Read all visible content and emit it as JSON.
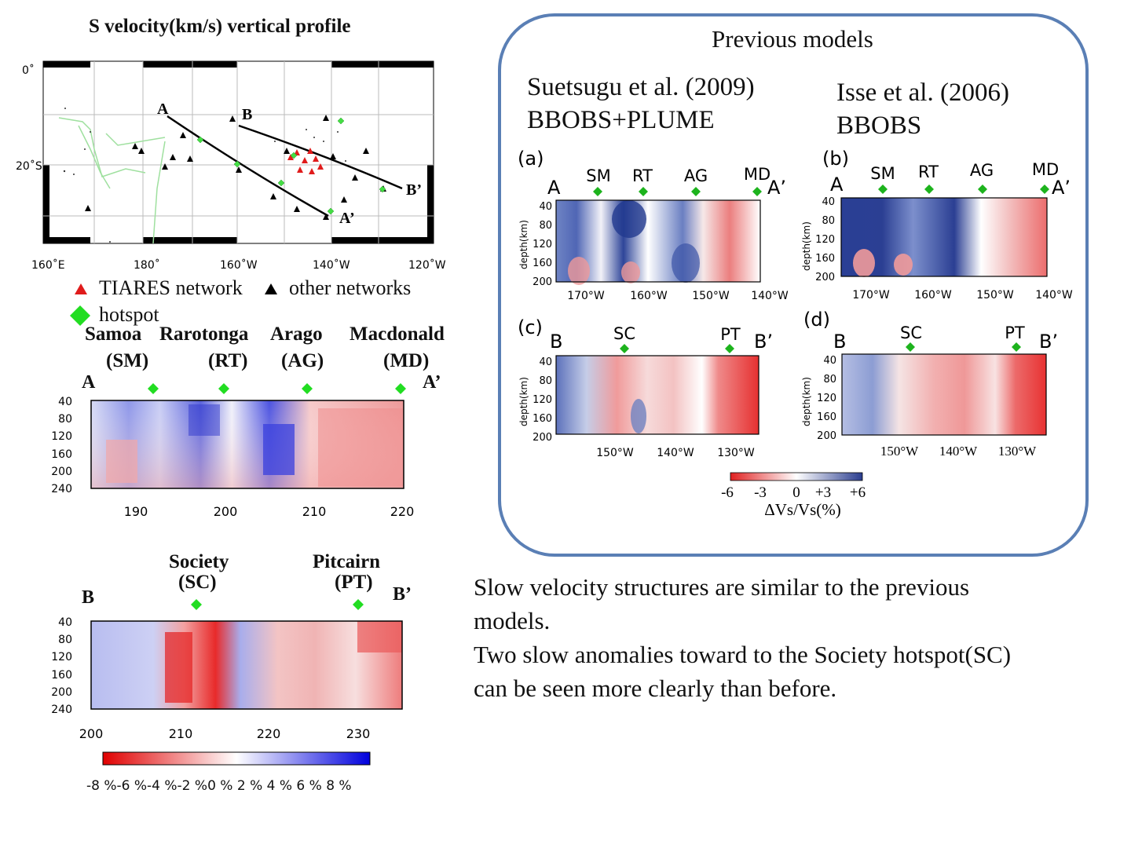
{
  "title": "S velocity(km/s) vertical profile",
  "map": {
    "lat_labels": [
      "0˚",
      "20˚S"
    ],
    "lon_labels": [
      "160˚E",
      "180˚",
      "160˚W",
      "140˚W",
      "120˚W"
    ],
    "profile_labels": {
      "A": "A",
      "A_prime": "A’",
      "B": "B",
      "B_prime": "B’"
    },
    "legend": {
      "tiares": "TIARES network",
      "other": "other networks",
      "hotspot": "hotspot"
    }
  },
  "profile_A": {
    "hotspots": [
      {
        "name": "Samoa",
        "abbr": "(SM)",
        "x": 192
      },
      {
        "name": "Rarotonga",
        "abbr": "(RT)",
        "x": 200
      },
      {
        "name": "Arago",
        "abbr": "(AG)",
        "x": 209
      },
      {
        "name": "Macdonald",
        "abbr": "(MD)",
        "x": 220
      }
    ],
    "end_left": "A",
    "end_right": "A’",
    "y_ticks": [
      "40",
      "80",
      "120",
      "160",
      "200",
      "240"
    ],
    "x_ticks": [
      "190",
      "200",
      "210",
      "220"
    ]
  },
  "profile_B": {
    "hotspots": [
      {
        "name": "Society",
        "abbr": "(SC)",
        "x": 212
      },
      {
        "name": "Pitcairn",
        "abbr": "(PT)",
        "x": 230
      }
    ],
    "end_left": "B",
    "end_right": "B’",
    "y_ticks": [
      "40",
      "80",
      "120",
      "160",
      "200",
      "240"
    ],
    "x_ticks": [
      "200",
      "210",
      "220",
      "230"
    ]
  },
  "colorbar_main": {
    "labels": [
      "-8 %",
      "-6 %",
      "-4 %",
      "-2 %",
      "0 %",
      "2 %",
      "4 %",
      "6 %",
      "8 %"
    ],
    "colors": [
      "#e00000",
      "#ffffff",
      "#0000dd"
    ]
  },
  "previous": {
    "heading": "Previous models",
    "left_ref": "Suetsugu et al. (2009)",
    "left_sub": "BBOBS+PLUME",
    "right_ref": "Isse et al. (2006)",
    "right_sub": "BBOBS",
    "panels": [
      {
        "tag": "(a)",
        "ends": [
          "A",
          "A’"
        ],
        "hotspots": [
          "SM",
          "RT",
          "AG",
          "MD"
        ],
        "x_ticks": [
          "170°W",
          "160°W",
          "150°W",
          "140°W"
        ],
        "y_ticks": [
          "40",
          "80",
          "120",
          "160",
          "200"
        ]
      },
      {
        "tag": "(b)",
        "ends": [
          "A",
          "A’"
        ],
        "hotspots": [
          "SM",
          "RT",
          "AG",
          "MD"
        ],
        "x_ticks": [
          "170°W",
          "160°W",
          "150°W",
          "140°W"
        ],
        "y_ticks": [
          "40",
          "80",
          "120",
          "160",
          "200"
        ]
      },
      {
        "tag": "(c)",
        "ends": [
          "B",
          "B’"
        ],
        "hotspots": [
          "SC",
          "PT"
        ],
        "x_ticks": [
          "150°W",
          "140°W",
          "130°W"
        ],
        "y_ticks": [
          "40",
          "80",
          "120",
          "160",
          "200"
        ]
      },
      {
        "tag": "(d)",
        "ends": [
          "B",
          "B’"
        ],
        "hotspots": [
          "SC",
          "PT"
        ],
        "x_ticks": [
          "150°W",
          "140°W",
          "130°W"
        ],
        "y_ticks": [
          "40",
          "80",
          "120",
          "160",
          "200"
        ]
      }
    ],
    "y_axis_label": "depth(km)",
    "colorbar_labels": [
      "-6",
      "-3",
      "0",
      "+3",
      "+6"
    ],
    "colorbar_title": "ΔVs/Vs(%)"
  },
  "conclusion": {
    "line1": "Slow velocity structures are similar to the previous",
    "line2": "models.",
    "line3": "Two slow anomalies toward to the Society hotspot(SC)",
    "line4": "can be seen more clearly than before."
  },
  "colors": {
    "slow": "#e23a3a",
    "fast": "#2a36c9",
    "hotspot": "#22cc22",
    "tiares": "#e01b1b",
    "frame": "#5a7fb5"
  }
}
